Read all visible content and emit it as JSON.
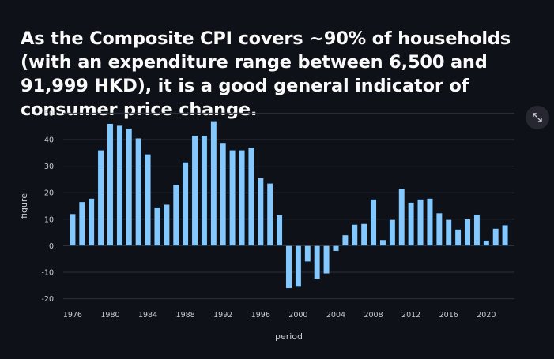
{
  "heading": "As the Composite CPI covers ~90% of households (with an expenditure range between 6,500 and 91,999 HKD), it is a good general indicator of consumer price change.",
  "fullscreen_icon": "expand-arrows-icon",
  "colors": {
    "background": "#0e1117",
    "bar_fill": "#83c9ff",
    "bar_stroke": "#0e1117",
    "grid": "#2c3039",
    "text": "#c8cbd1",
    "button_bg": "#262730"
  },
  "chart_data": {
    "type": "bar",
    "xlabel": "period",
    "ylabel": "figure",
    "ylim": [
      -21,
      51
    ],
    "xlim": [
      1975,
      2023
    ],
    "y_ticks": [
      -20,
      -10,
      0,
      10,
      20,
      30,
      40,
      50
    ],
    "x_ticks": [
      1976,
      1980,
      1984,
      1988,
      1992,
      1996,
      2000,
      2004,
      2008,
      2012,
      2016,
      2020
    ],
    "grid": true,
    "legend": "none",
    "categories": [
      1976,
      1977,
      1978,
      1979,
      1980,
      1981,
      1982,
      1983,
      1984,
      1985,
      1986,
      1987,
      1988,
      1989,
      1990,
      1991,
      1992,
      1993,
      1994,
      1995,
      1996,
      1997,
      1998,
      1999,
      2000,
      2001,
      2002,
      2003,
      2004,
      2005,
      2006,
      2007,
      2008,
      2009,
      2010,
      2011,
      2012,
      2013,
      2014,
      2015,
      2016,
      2017,
      2018,
      2019,
      2020,
      2021,
      2022
    ],
    "values": [
      12,
      16.5,
      17.8,
      36,
      46,
      45.3,
      44.2,
      40.5,
      34.5,
      14.5,
      15.5,
      23,
      31.5,
      41.5,
      41.5,
      47,
      38.8,
      36,
      36,
      37,
      25.5,
      23.5,
      11.5,
      -16,
      -15.5,
      -6,
      -12.5,
      -10.5,
      -2,
      4,
      8,
      8.3,
      17.5,
      2.2,
      9.8,
      21.5,
      16.3,
      17.5,
      17.8,
      12.3,
      9.8,
      6.2,
      10,
      11.8,
      2,
      6.5,
      7.8
    ]
  }
}
